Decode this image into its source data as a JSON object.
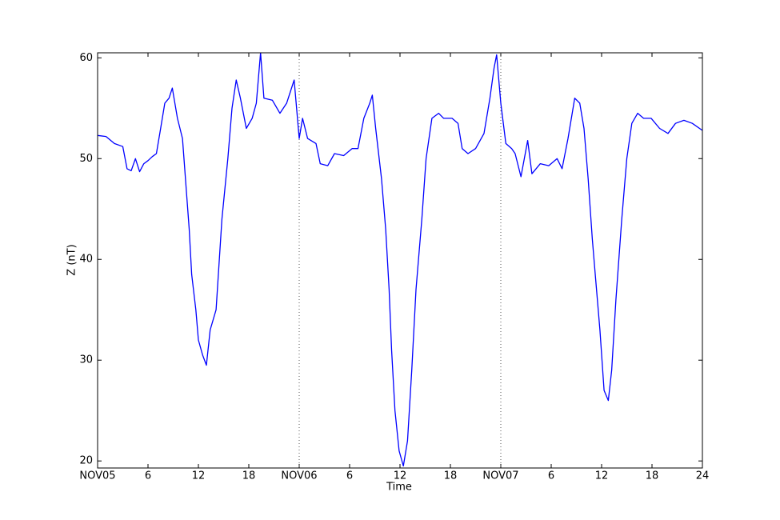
{
  "chart_data": {
    "type": "line",
    "xlabel": "Time",
    "ylabel": "Z (nT)",
    "color": "#0000ff",
    "x": [
      0,
      1,
      2,
      3,
      3.5,
      4,
      4.5,
      5,
      5.5,
      6,
      6.5,
      7,
      7.5,
      8,
      8.5,
      8.9,
      9.5,
      10.1,
      10.5,
      10.9,
      11.2,
      11.7,
      12,
      12.5,
      12.95,
      13.4,
      14.1,
      14.8,
      15.5,
      16,
      16.5,
      17,
      17.7,
      18.4,
      18.9,
      19.4,
      19.8,
      20.8,
      21.7,
      22.5,
      23.4,
      24,
      24.4,
      25,
      26,
      26.5,
      27.4,
      28.2,
      29.3,
      30.3,
      31,
      31.7,
      32.4,
      32.7,
      33.1,
      33.8,
      34.3,
      34.7,
      35,
      35.4,
      35.9,
      36.4,
      36.9,
      37.4,
      37.9,
      38.6,
      39.1,
      39.8,
      40.6,
      41.2,
      42.2,
      42.9,
      43.4,
      44.1,
      45,
      46,
      46.7,
      47.2,
      47.5,
      48,
      48.6,
      49.3,
      49.7,
      50.4,
      51.2,
      51.7,
      52.7,
      53.7,
      54.7,
      55.3,
      56,
      56.8,
      57.4,
      57.9,
      58.4,
      58.9,
      59.3,
      59.8,
      60.3,
      60.8,
      61.2,
      61.7,
      62.4,
      63,
      63.6,
      64.3,
      65,
      65.9,
      66.9,
      67.9,
      68.8,
      69.8,
      70.8,
      72
    ],
    "values": [
      52.3,
      52.2,
      51.5,
      51.2,
      49,
      48.8,
      50,
      48.7,
      49.5,
      49.8,
      50.2,
      50.5,
      53,
      55.5,
      56,
      57,
      54,
      52,
      47.5,
      43,
      38.5,
      35,
      32,
      30.5,
      29.5,
      33,
      35,
      44,
      50,
      55,
      57.8,
      56,
      53,
      54,
      55.5,
      60.5,
      56,
      55.8,
      54.5,
      55.5,
      57.8,
      52,
      54,
      52,
      51.5,
      49.5,
      49.3,
      50.5,
      50.3,
      51,
      51,
      54,
      55.5,
      56.3,
      53,
      48,
      43,
      37,
      31,
      25,
      21,
      19.5,
      22,
      29,
      37,
      44,
      50,
      54,
      54.5,
      54,
      54,
      53.5,
      51,
      50.5,
      51,
      52.5,
      56,
      59,
      60.3,
      55.5,
      51.5,
      51,
      50.5,
      48.2,
      51.8,
      48.5,
      49.5,
      49.3,
      50,
      49,
      52,
      56,
      55.5,
      53,
      48,
      42,
      38,
      33,
      27,
      26,
      29,
      36,
      44,
      50,
      53.5,
      54.5,
      54,
      54,
      53,
      52.5,
      53.5,
      53.8,
      53.5,
      52.8
    ],
    "xlim": [
      0,
      72
    ],
    "ylim": [
      19.3,
      60.5
    ],
    "xticks": [
      {
        "value": 0,
        "label": "NOV05"
      },
      6,
      12,
      18,
      {
        "value": 24,
        "label": "NOV06"
      },
      {
        "value": 30,
        "label": "6"
      },
      {
        "value": 36,
        "label": "12"
      },
      {
        "value": 42,
        "label": "18"
      },
      {
        "value": 48,
        "label": "NOV07"
      },
      {
        "value": 54,
        "label": "6"
      },
      {
        "value": 60,
        "label": "12"
      },
      {
        "value": 66,
        "label": "18"
      },
      {
        "value": 72,
        "label": "24"
      }
    ],
    "yticks": [
      20,
      30,
      40,
      50,
      60
    ]
  }
}
